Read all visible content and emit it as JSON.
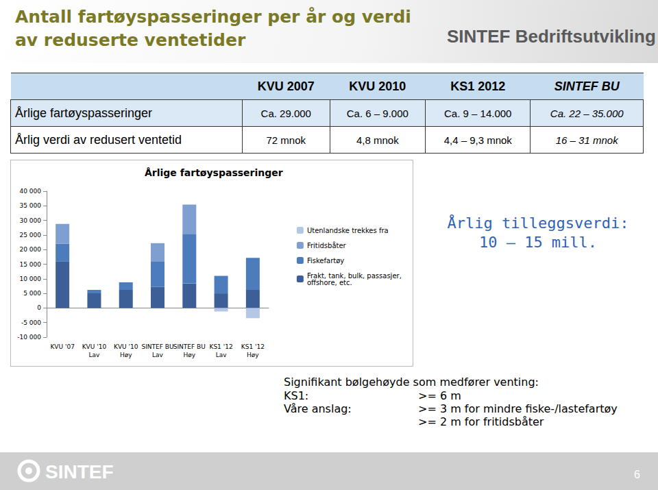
{
  "header": {
    "title": [
      "Antall fartøyspasseringer per år og verdi",
      "av reduserte ventetider"
    ],
    "brand": "SINTEF Bedriftsutvikling"
  },
  "table": {
    "columns": [
      "KVU 2007",
      "KVU 2010",
      "KS1 2012",
      "SINTEF BU"
    ],
    "rows": [
      {
        "label": "Årlige fartøyspasseringer",
        "cells": [
          "Ca. 29.000",
          "Ca. 6 – 9.000",
          "Ca. 9 – 14.000",
          "Ca. 22 – 35.000"
        ]
      },
      {
        "label": "Årlig verdi av redusert ventetid",
        "cells": [
          "72 mnok",
          "4,8 mnok",
          "4,4 – 9,3 mnok",
          "16 – 31 mnok"
        ]
      }
    ]
  },
  "annotation": [
    "Årlig tilleggsverdi:",
    "10 – 15 mill."
  ],
  "notes": {
    "title": "Signifikant bølgehøyde som medfører venting:",
    "rows": [
      {
        "label": "KS1:",
        "text": [
          ">= 6 m"
        ]
      },
      {
        "label": "Våre anslag:",
        "text": [
          ">= 3 m for mindre fiske-/lastefartøy",
          ">= 2 m for fritidsbåter"
        ]
      }
    ]
  },
  "footer": {
    "logo": "SINTEF",
    "page": 6
  },
  "chart_data": {
    "type": "bar",
    "title": "Årlige fartøyspasseringer",
    "stacked": true,
    "grid": false,
    "legend": "right",
    "categories": [
      "KVU '07",
      "KVU '10\nLav",
      "KVU '10\nHøy",
      "SINTEF BU\nLav",
      "SINTEF BU\nHøy",
      "KS1 '12\nLav",
      "KS1 '12\nHøy"
    ],
    "series": [
      {
        "name": "Frakt, tank, bulk, passasjer, offshore, etc.",
        "color": "#3b5f96",
        "values": [
          16000,
          5000,
          6200,
          7200,
          8400,
          5000,
          6200
        ]
      },
      {
        "name": "Fiskefartøy",
        "color": "#4d7cbd",
        "values": [
          6000,
          1200,
          2600,
          8800,
          17000,
          6000,
          11000
        ]
      },
      {
        "name": "Fritidsbåter",
        "color": "#7f9fd0",
        "values": [
          6800,
          0,
          0,
          6200,
          10000,
          0,
          0
        ]
      },
      {
        "name": "Utenlandske trekkes fra",
        "color": "#b4c7e6",
        "values": [
          0,
          0,
          0,
          0,
          0,
          -1200,
          -3500
        ]
      }
    ],
    "ylim": [
      -10000,
      40000
    ],
    "yticks": [
      {
        "value": -10000,
        "label": "-10 000"
      },
      {
        "value": -5000,
        "label": "-5 000"
      },
      0,
      {
        "value": 5000,
        "label": "5 000"
      },
      {
        "value": 10000,
        "label": "10 000"
      },
      {
        "value": 15000,
        "label": "15 000"
      },
      {
        "value": 20000,
        "label": "20 000"
      },
      {
        "value": 25000,
        "label": "25 000"
      },
      {
        "value": 30000,
        "label": "30 000"
      },
      {
        "value": 35000,
        "label": "35 000"
      },
      {
        "value": 40000,
        "label": "40 000"
      }
    ]
  }
}
